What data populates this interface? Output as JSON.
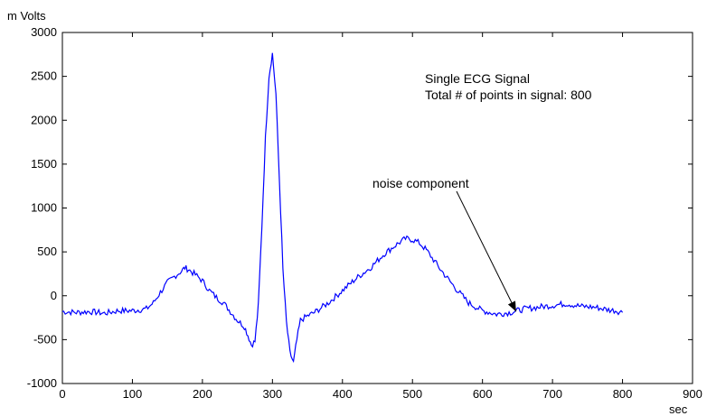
{
  "chart_data": {
    "type": "line",
    "title": "",
    "xlabel": "sec",
    "ylabel": "m Volts",
    "xlim": [
      0,
      900
    ],
    "ylim": [
      -1000,
      3000
    ],
    "x_ticks": [
      "0",
      "100",
      "200",
      "300",
      "400",
      "500",
      "600",
      "700",
      "800",
      "900"
    ],
    "y_ticks": [
      "3000",
      "2500",
      "2000",
      "1500",
      "1000",
      "500",
      "0",
      "-500",
      "-1000"
    ],
    "grid": false,
    "series_color": "#0000ff",
    "series": [
      {
        "name": "",
        "x": [
          0,
          20,
          40,
          60,
          80,
          100,
          120,
          130,
          140,
          150,
          160,
          170,
          175,
          180,
          190,
          200,
          210,
          220,
          230,
          240,
          250,
          260,
          265,
          270,
          275,
          280,
          285,
          290,
          295,
          300,
          305,
          310,
          315,
          320,
          325,
          330,
          335,
          340,
          350,
          360,
          380,
          400,
          420,
          440,
          460,
          480,
          490,
          500,
          510,
          520,
          540,
          560,
          580,
          600,
          620,
          640,
          650,
          660,
          680,
          700,
          720,
          740,
          760,
          780,
          790,
          800
        ],
        "y": [
          -180,
          -190,
          -180,
          -200,
          -170,
          -170,
          -150,
          -80,
          40,
          150,
          220,
          280,
          320,
          300,
          240,
          170,
          60,
          -20,
          -80,
          -180,
          -280,
          -350,
          -450,
          -560,
          -520,
          -100,
          800,
          1800,
          2500,
          2760,
          2300,
          1300,
          300,
          -300,
          -650,
          -760,
          -500,
          -280,
          -230,
          -190,
          -80,
          60,
          200,
          320,
          480,
          600,
          650,
          640,
          600,
          520,
          300,
          100,
          -80,
          -170,
          -210,
          -190,
          -170,
          -150,
          -130,
          -110,
          -90,
          -120,
          -130,
          -160,
          -170,
          -190
        ]
      }
    ],
    "annotations": {
      "signal_title": "Single ECG Signal",
      "points_text": "Total # of points in signal: 800",
      "noise_label": "noise component"
    },
    "noise_arrow_target": {
      "x": 648,
      "y": -180
    }
  }
}
